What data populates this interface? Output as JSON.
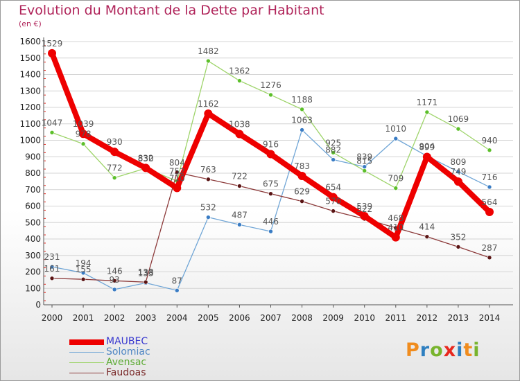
{
  "title": "Evolution du Montant de la Dette par Habitant",
  "unit": "(en €)",
  "brand": {
    "letters": [
      "P",
      "r",
      "o",
      "x",
      "i",
      "t",
      "i"
    ],
    "colors": [
      "#f08c1e",
      "#2e7fc0",
      "#78b42d",
      "#e8281e",
      "#2e7fc0",
      "#f08c1e",
      "#78b42d"
    ]
  },
  "colors": {
    "axis": "#555555",
    "grid": "#d4d4d4",
    "tick_marks": "#e8281e",
    "label_text": "#555555",
    "title": "#b0245a"
  },
  "chart_data": {
    "type": "line",
    "title": "Evolution du Montant de la Dette par Habitant",
    "ylabel": "(en €)",
    "xlabel": "",
    "x": [
      "2000",
      "2001",
      "2002",
      "2003",
      "2004",
      "2005",
      "2006",
      "2007",
      "2008",
      "2009",
      "2010",
      "2011",
      "2012",
      "2013",
      "2014"
    ],
    "ylim": [
      0,
      1600
    ],
    "yticks": [
      0,
      100,
      200,
      300,
      400,
      500,
      600,
      700,
      800,
      900,
      1000,
      1100,
      1200,
      1300,
      1400,
      1500,
      1600
    ],
    "grid": "horizontal",
    "legend": "bottom-left",
    "series": [
      {
        "name": "MAUBEC",
        "color": "#ee0000",
        "marker": "#ee0000",
        "legend_color": "#3a3ad0",
        "width": 8,
        "values": [
          1529,
          1039,
          930,
          832,
          710,
          1162,
          1038,
          916,
          783,
          654,
          539,
          410,
          899,
          749,
          564
        ],
        "labels": [
          "1529",
          "1039",
          "930",
          "832",
          "710",
          "1162",
          "1038",
          "916",
          "783",
          "654",
          "539",
          "410",
          "899",
          "749",
          "564"
        ]
      },
      {
        "name": "Solomiac",
        "color": "#6fa5d6",
        "marker": "#3a7cc4",
        "legend_color": "#4f86c4",
        "width": 1.3,
        "values": [
          231,
          194,
          93,
          133,
          87,
          532,
          487,
          446,
          1063,
          882,
          839,
          1010,
          904,
          809,
          716
        ],
        "labels": [
          "231",
          "194",
          "93",
          "133",
          "87",
          "532",
          "487",
          "446",
          "1063",
          "882",
          "839",
          "1010",
          "904",
          "809",
          "716"
        ]
      },
      {
        "name": "Avensac",
        "color": "#9ed46a",
        "marker": "#5cbf2a",
        "legend_color": "#5caa34",
        "width": 1.3,
        "values": [
          1047,
          978,
          772,
          830,
          752,
          1482,
          1362,
          1276,
          1188,
          925,
          815,
          709,
          1171,
          1069,
          940
        ],
        "labels": [
          "1047",
          "978",
          "772",
          "830",
          "752",
          "1482",
          "1362",
          "1276",
          "1188",
          "925",
          "815",
          "709",
          "1171",
          "1069",
          "940"
        ]
      },
      {
        "name": "Faudoas",
        "color": "#8c3a3a",
        "marker": "#5a1414",
        "legend_color": "#7a2a2a",
        "width": 1.3,
        "values": [
          161,
          155,
          146,
          138,
          804,
          763,
          722,
          675,
          629,
          570,
          522,
          468,
          414,
          352,
          287
        ],
        "labels": [
          "161",
          "155",
          "146",
          "138",
          "804",
          "763",
          "722",
          "675",
          "629",
          "570",
          "522",
          "468",
          "414",
          "352",
          "287"
        ]
      }
    ]
  }
}
